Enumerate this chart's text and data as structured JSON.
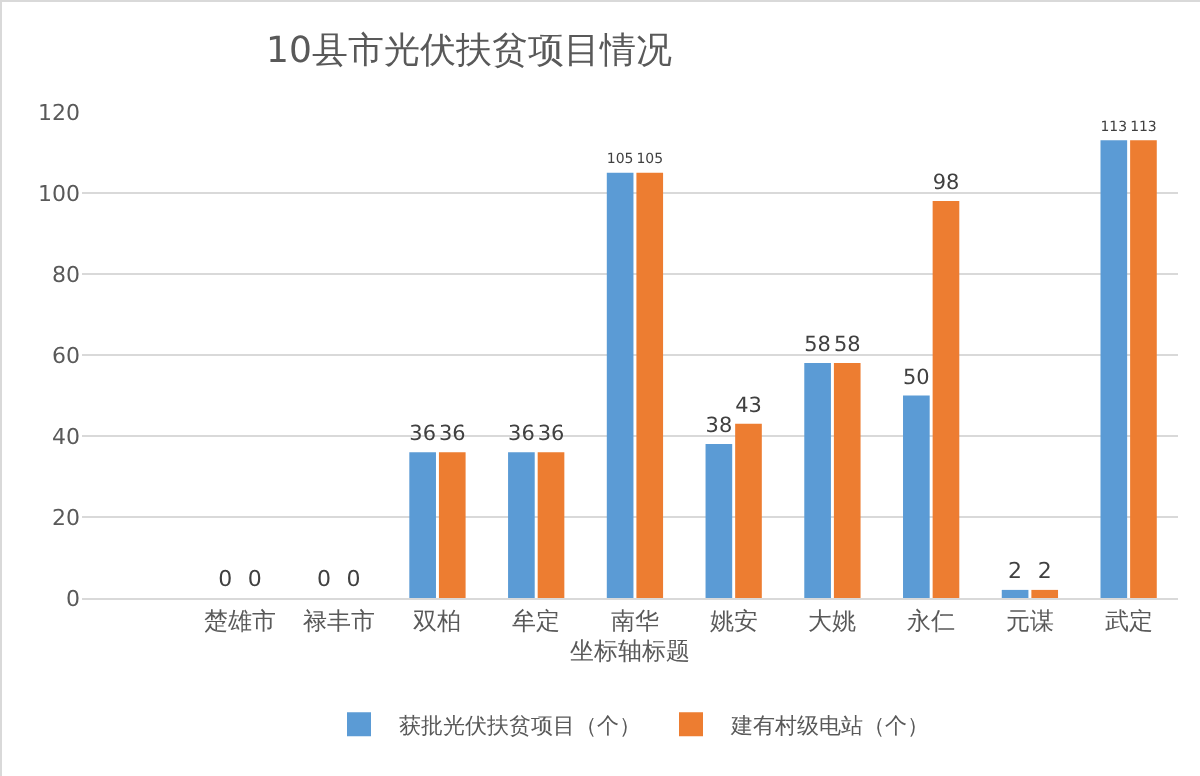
{
  "chart_data": {
    "type": "bar",
    "title": "10县市光伏扶贫项目情况",
    "xlabel": "坐标轴标题",
    "categories": [
      "楚雄市",
      "禄丰市",
      "双柏",
      "牟定",
      "南华",
      "姚安",
      "大姚",
      "永仁",
      "元谋",
      "武定"
    ],
    "series": [
      {
        "name": "获批光伏扶贫项目（个）",
        "color": "#5b9bd5",
        "values": [
          0,
          0,
          36,
          36,
          105,
          38,
          58,
          50,
          2,
          113
        ]
      },
      {
        "name": "建有村级电站（个）",
        "color": "#ed7d31",
        "values": [
          0,
          0,
          36,
          36,
          105,
          43,
          58,
          98,
          2,
          113
        ]
      }
    ],
    "ylim": [
      0,
      120
    ],
    "yticks": [
      0,
      20,
      40,
      60,
      80,
      100,
      120
    ],
    "grid": "y",
    "legend": "bottom",
    "data_labels": true
  }
}
